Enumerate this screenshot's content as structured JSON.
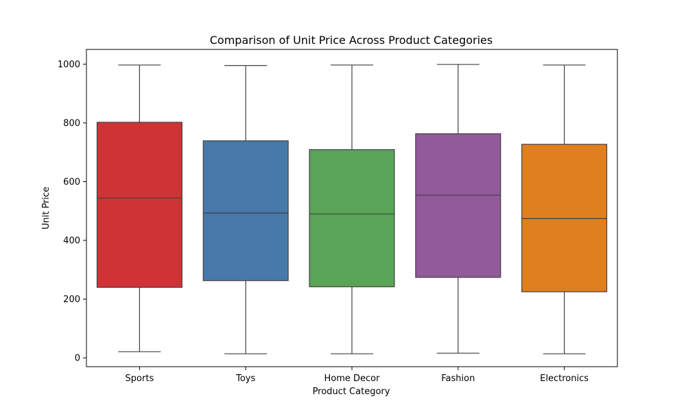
{
  "chart_data": {
    "type": "box",
    "title": "Comparison of Unit Price Across Product Categories",
    "xlabel": "Product Category",
    "ylabel": "Unit Price",
    "ylim": [
      -30,
      1050
    ],
    "yticks": [
      0,
      200,
      400,
      600,
      800,
      1000
    ],
    "grid": false,
    "categories": [
      "Sports",
      "Toys",
      "Home Decor",
      "Fashion",
      "Electronics"
    ],
    "boxes": [
      {
        "category": "Sports",
        "min": 21,
        "q1": 240,
        "median": 544,
        "q3": 802,
        "max": 997,
        "color": "#d03336"
      },
      {
        "category": "Toys",
        "min": 14,
        "q1": 263,
        "median": 493,
        "q3": 739,
        "max": 995,
        "color": "#4779aa"
      },
      {
        "category": "Home Decor",
        "min": 14,
        "q1": 242,
        "median": 490,
        "q3": 709,
        "max": 997,
        "color": "#5aa457"
      },
      {
        "category": "Fashion",
        "min": 16,
        "q1": 274,
        "median": 554,
        "q3": 763,
        "max": 999,
        "color": "#925a9a"
      },
      {
        "category": "Electronics",
        "min": 14,
        "q1": 225,
        "median": 474,
        "q3": 727,
        "max": 997,
        "color": "#e07f1e"
      }
    ]
  }
}
